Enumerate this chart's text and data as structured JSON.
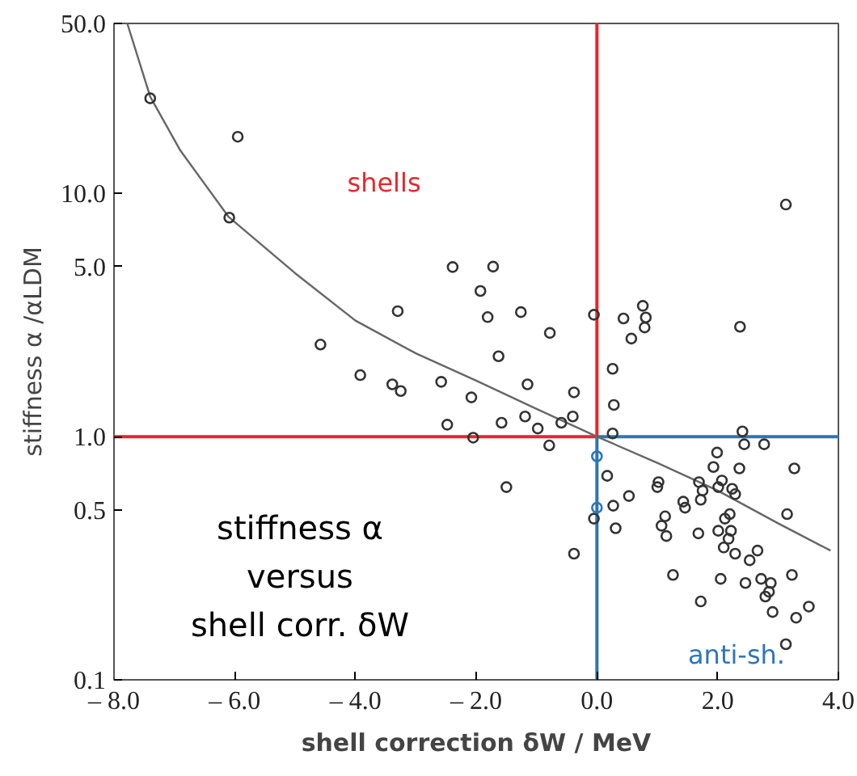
{
  "chart_data": {
    "type": "scatter",
    "xlabel": "shell correction δW / MeV",
    "ylabel": "stiffness α /αLDM",
    "log": "y",
    "grid": false,
    "xlim": [
      -8,
      4
    ],
    "ylim": [
      0.1,
      50
    ],
    "xticks": [
      {
        "value": -8,
        "label": "– 8.0"
      },
      {
        "value": -6,
        "label": "– 6.0"
      },
      {
        "value": -4,
        "label": "– 4.0"
      },
      {
        "value": -2,
        "label": "– 2.0"
      },
      {
        "value": 0,
        "label": "0.0"
      },
      {
        "value": 2,
        "label": "2.0"
      },
      {
        "value": 4,
        "label": "4.0"
      }
    ],
    "yticks": [
      0.1,
      0.5,
      {
        "value": 1,
        "label": "1.0"
      },
      {
        "value": 5,
        "label": "5.0"
      },
      {
        "value": 10,
        "label": "10.0"
      },
      {
        "value": 50,
        "label": "50.0"
      }
    ],
    "annotations": [
      "shells",
      "anti-sh.",
      "stiffness α\nversus\nshell corr. δW"
    ],
    "series": [
      {
        "type": "line",
        "color": "#e8262a",
        "x": [
          -8,
          0,
          0
        ],
        "values": [
          1,
          1,
          50
        ]
      },
      {
        "type": "line",
        "color": "#2e75b6",
        "x": [
          0,
          0,
          4
        ],
        "values": [
          0.1,
          1,
          1
        ]
      },
      {
        "type": "line",
        "color": "#666666",
        "x": [
          -7.78,
          -7.4,
          -6.9,
          -6.1,
          -5,
          -4,
          -3,
          -2,
          -1,
          0,
          1,
          2,
          3,
          3.87
        ],
        "values": [
          50,
          25,
          15,
          8,
          4.7,
          3.0,
          2.2,
          1.7,
          1.3,
          1.0,
          0.78,
          0.6,
          0.44,
          0.34
        ]
      },
      {
        "marker": "circle",
        "color": "#333333",
        "x": [
          -7.4,
          -5.95,
          -6.09,
          -2.39,
          -1.72,
          -1.93,
          -3.3,
          -1.81,
          -1.26,
          -0.78,
          -0.05,
          -4.58,
          -1.63,
          -3.92,
          -3.39,
          -3.25,
          -2.58,
          -2.08,
          -1.15,
          -0.38,
          -2.48,
          -1.58,
          -1.19,
          -0.98,
          -0.59,
          -0.4,
          -2.05,
          -0.79,
          -1.5,
          -0.38,
          -0.05,
          3.13,
          0.44,
          0.76,
          0.81,
          0.79,
          0.57,
          2.37,
          0.26,
          0.28,
          0.26,
          2.41,
          2.44,
          2.77,
          1.99,
          1.93,
          2.36,
          3.27,
          0.17,
          1.02,
          1.0,
          1.69,
          2.07,
          1.75,
          2.01,
          2.24,
          2.29,
          0.53,
          1.72,
          1.43,
          1.46,
          0.27,
          2.2,
          1.13,
          2.12,
          3.15,
          1.07,
          1.15,
          1.68,
          2.01,
          2.22,
          2.18,
          2.1,
          0.31,
          2.66,
          2.29,
          2.53,
          1.26,
          2.05,
          2.46,
          2.72,
          2.88,
          2.85,
          2.79,
          3.23,
          1.72,
          2.91,
          3.3,
          3.51,
          3.13
        ],
        "values": [
          24.6,
          17.1,
          7.95,
          4.98,
          5.0,
          3.97,
          3.28,
          3.1,
          3.25,
          2.67,
          3.17,
          2.39,
          2.14,
          1.79,
          1.64,
          1.54,
          1.68,
          1.45,
          1.64,
          1.52,
          1.12,
          1.14,
          1.21,
          1.08,
          1.14,
          1.21,
          0.99,
          0.92,
          0.62,
          0.33,
          0.46,
          9.0,
          3.06,
          3.45,
          3.09,
          2.81,
          2.53,
          2.83,
          1.9,
          1.35,
          1.03,
          1.05,
          0.93,
          0.93,
          0.86,
          0.75,
          0.74,
          0.74,
          0.69,
          0.65,
          0.62,
          0.65,
          0.66,
          0.6,
          0.62,
          0.61,
          0.58,
          0.57,
          0.55,
          0.54,
          0.51,
          0.52,
          0.48,
          0.47,
          0.46,
          0.48,
          0.43,
          0.39,
          0.4,
          0.41,
          0.41,
          0.38,
          0.35,
          0.42,
          0.34,
          0.33,
          0.31,
          0.27,
          0.26,
          0.25,
          0.26,
          0.25,
          0.23,
          0.22,
          0.27,
          0.21,
          0.19,
          0.18,
          0.2,
          0.14
        ]
      },
      {
        "color": "#2e75b6",
        "marker": "circle",
        "x": [
          0,
          0
        ],
        "values": [
          0.83,
          0.51
        ]
      }
    ]
  }
}
